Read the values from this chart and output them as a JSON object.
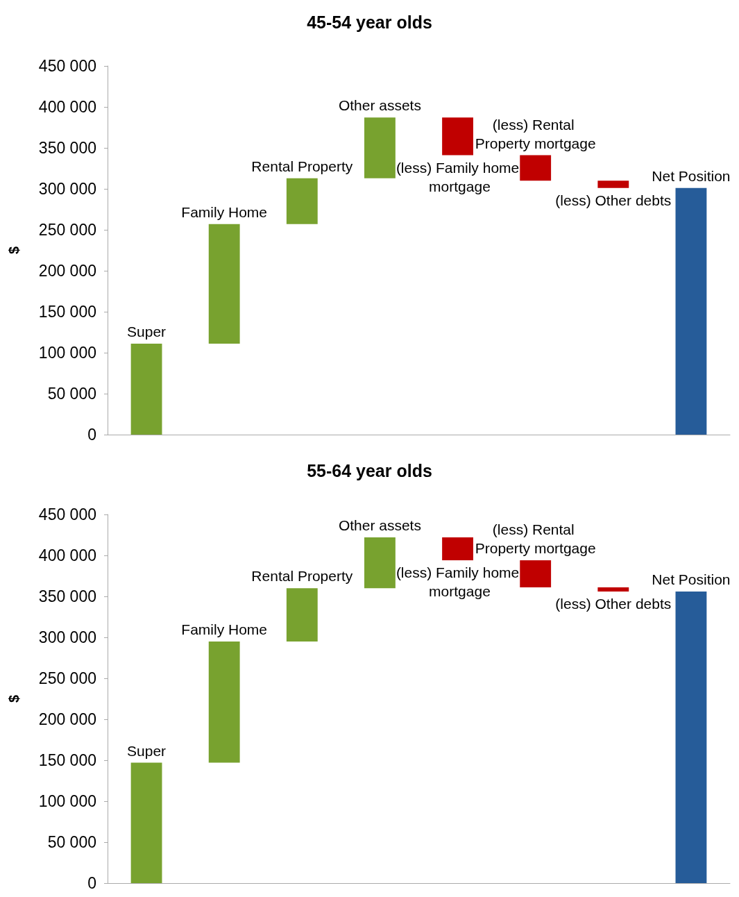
{
  "chart_data": [
    {
      "type": "bar",
      "title": "45-54 year olds",
      "ylabel": "$",
      "categories": [
        "Super",
        "Family Home",
        "Rental Property",
        "Other assets",
        "(less) Family home mortgage",
        "(less) Rental Property mortgage",
        "(less) Other debts",
        "Net Position"
      ],
      "base": [
        0,
        111000,
        257000,
        313000,
        387000,
        341000,
        310000,
        0
      ],
      "values": [
        111000,
        146000,
        56000,
        74000,
        -46000,
        -31000,
        -9000,
        301000
      ],
      "colors": [
        "#78a22f",
        "#78a22f",
        "#78a22f",
        "#78a22f",
        "#c00000",
        "#c00000",
        "#c00000",
        "#265c99"
      ],
      "ylim": [
        0,
        450000
      ],
      "yticks": [
        {
          "value": 0,
          "label": "0"
        },
        {
          "value": 50000,
          "label": "50 000"
        },
        {
          "value": 100000,
          "label": "100 000"
        },
        {
          "value": 150000,
          "label": "150 000"
        },
        {
          "value": 200000,
          "label": "200 000"
        },
        {
          "value": 250000,
          "label": "250 000"
        },
        {
          "value": 300000,
          "label": "300 000"
        },
        {
          "value": 350000,
          "label": "350 000"
        },
        {
          "value": 400000,
          "label": "400 000"
        },
        {
          "value": 450000,
          "label": "450 000"
        }
      ],
      "tick_labels": "y",
      "grid": false
    },
    {
      "type": "bar",
      "title": "55-64 year olds",
      "ylabel": "$",
      "categories": [
        "Super",
        "Family Home",
        "Rental Property",
        "Other assets",
        "(less) Family home mortgage",
        "(less) Rental Property mortgage",
        "(less) Other debts",
        "Net Position"
      ],
      "base": [
        0,
        147000,
        295000,
        360000,
        422000,
        394000,
        361000,
        0
      ],
      "values": [
        147000,
        148000,
        65000,
        62000,
        -28000,
        -33000,
        -5000,
        356000
      ],
      "colors": [
        "#78a22f",
        "#78a22f",
        "#78a22f",
        "#78a22f",
        "#c00000",
        "#c00000",
        "#c00000",
        "#265c99"
      ],
      "ylim": [
        0,
        450000
      ],
      "yticks": [
        {
          "value": 0,
          "label": "0"
        },
        {
          "value": 50000,
          "label": "50 000"
        },
        {
          "value": 100000,
          "label": "100 000"
        },
        {
          "value": 150000,
          "label": "150 000"
        },
        {
          "value": 200000,
          "label": "200 000"
        },
        {
          "value": 250000,
          "label": "250 000"
        },
        {
          "value": 300000,
          "label": "300 000"
        },
        {
          "value": 350000,
          "label": "350 000"
        },
        {
          "value": 400000,
          "label": "400 000"
        },
        {
          "value": 450000,
          "label": "450 000"
        }
      ],
      "tick_labels": "y",
      "grid": false
    }
  ]
}
